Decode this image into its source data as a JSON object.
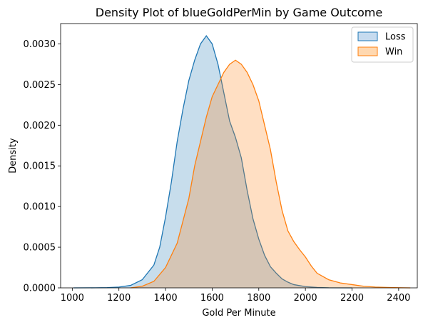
{
  "chart_data": {
    "type": "area",
    "title": "Density Plot of blueGoldPerMin by Game Outcome",
    "xlabel": "Gold Per Minute",
    "ylabel": "Density",
    "xlim": [
      950,
      2480
    ],
    "ylim": [
      0,
      0.00325
    ],
    "x_ticks": [
      1000,
      1200,
      1400,
      1600,
      1800,
      2000,
      2200,
      2400
    ],
    "x_tick_labels": [
      "1000",
      "1200",
      "1400",
      "1600",
      "1800",
      "2000",
      "2200",
      "2400"
    ],
    "y_ticks": [
      0,
      0.0005,
      0.001,
      0.0015,
      0.002,
      0.0025,
      0.003
    ],
    "y_tick_labels": [
      "0.0000",
      "0.0005",
      "0.0010",
      "0.0015",
      "0.0020",
      "0.0025",
      "0.0030"
    ],
    "grid": false,
    "legend_position": "top-right",
    "series": [
      {
        "name": "Loss",
        "color": "#1f77b4",
        "fill": "#c6dbef",
        "points": [
          [
            1005,
            0
          ],
          [
            1100,
            1e-06
          ],
          [
            1150,
            3e-06
          ],
          [
            1200,
            1e-05
          ],
          [
            1250,
            3e-05
          ],
          [
            1300,
            0.0001
          ],
          [
            1350,
            0.00028
          ],
          [
            1375,
            0.0005
          ],
          [
            1400,
            0.00087
          ],
          [
            1425,
            0.0013
          ],
          [
            1450,
            0.0018
          ],
          [
            1475,
            0.0022
          ],
          [
            1500,
            0.00255
          ],
          [
            1525,
            0.0028
          ],
          [
            1550,
            0.003
          ],
          [
            1575,
            0.0031
          ],
          [
            1600,
            0.003
          ],
          [
            1625,
            0.00275
          ],
          [
            1650,
            0.0024
          ],
          [
            1675,
            0.00205
          ],
          [
            1700,
            0.00185
          ],
          [
            1725,
            0.0016
          ],
          [
            1750,
            0.0012
          ],
          [
            1775,
            0.00085
          ],
          [
            1800,
            0.0006
          ],
          [
            1825,
            0.0004
          ],
          [
            1850,
            0.00026
          ],
          [
            1875,
            0.00018
          ],
          [
            1900,
            0.00011
          ],
          [
            1925,
            7e-05
          ],
          [
            1950,
            4e-05
          ],
          [
            2000,
            1.5e-05
          ],
          [
            2050,
            5e-06
          ],
          [
            2100,
            1e-06
          ],
          [
            2200,
            0
          ]
        ]
      },
      {
        "name": "Win",
        "color": "#ff7f0e",
        "fill": "#ffd8b0",
        "points": [
          [
            1250,
            0
          ],
          [
            1300,
            2e-05
          ],
          [
            1350,
            8e-05
          ],
          [
            1400,
            0.00025
          ],
          [
            1450,
            0.00055
          ],
          [
            1500,
            0.0011
          ],
          [
            1525,
            0.0015
          ],
          [
            1550,
            0.0018
          ],
          [
            1575,
            0.0021
          ],
          [
            1600,
            0.00235
          ],
          [
            1625,
            0.0025
          ],
          [
            1650,
            0.00265
          ],
          [
            1675,
            0.00275
          ],
          [
            1700,
            0.0028
          ],
          [
            1725,
            0.00275
          ],
          [
            1750,
            0.00265
          ],
          [
            1775,
            0.0025
          ],
          [
            1800,
            0.0023
          ],
          [
            1825,
            0.002
          ],
          [
            1850,
            0.0017
          ],
          [
            1875,
            0.0013
          ],
          [
            1900,
            0.00095
          ],
          [
            1925,
            0.0007
          ],
          [
            1950,
            0.00057
          ],
          [
            1975,
            0.00047
          ],
          [
            2000,
            0.00038
          ],
          [
            2025,
            0.00027
          ],
          [
            2050,
            0.00018
          ],
          [
            2100,
            0.0001
          ],
          [
            2150,
            6e-05
          ],
          [
            2200,
            4e-05
          ],
          [
            2250,
            2e-05
          ],
          [
            2300,
            1e-05
          ],
          [
            2350,
            5e-06
          ],
          [
            2400,
            2e-06
          ],
          [
            2450,
            0
          ]
        ]
      }
    ]
  }
}
